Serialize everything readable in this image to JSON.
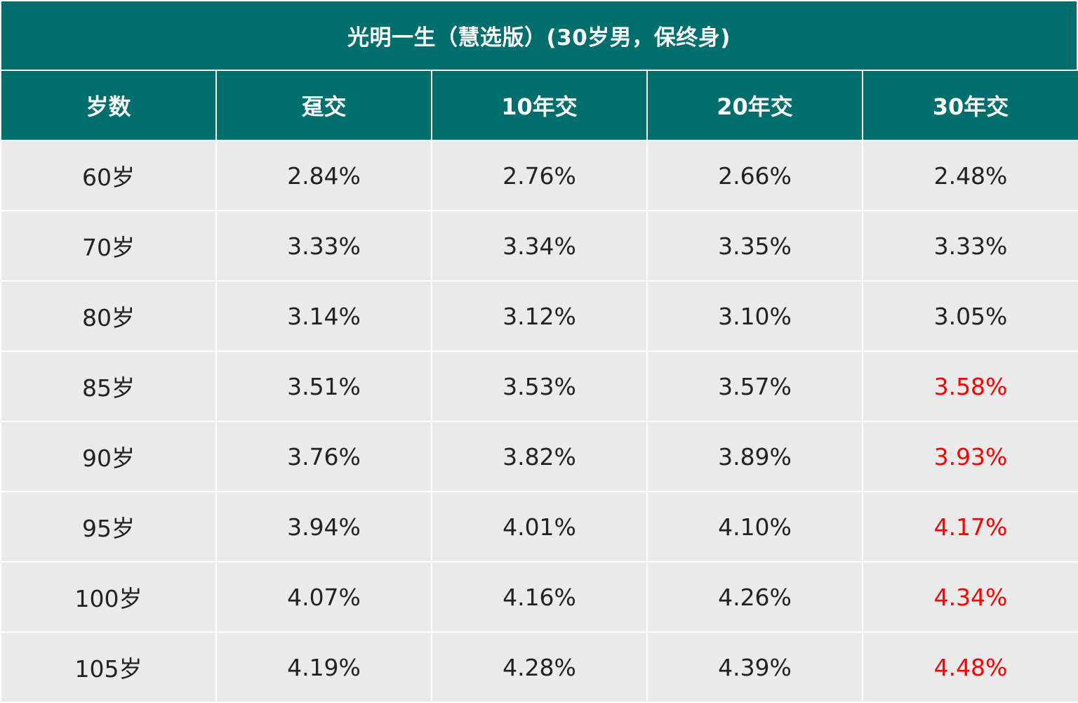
{
  "table": {
    "title": "光明一生（慧选版）(30岁男，保终身)",
    "headers": [
      "岁数",
      "趸交",
      "10年交",
      "20年交",
      "30年交"
    ],
    "highlight_color": "#ff0000",
    "header_color": "#006e6c",
    "rows": [
      {
        "age": "60岁",
        "values": [
          "2.84%",
          "2.76%",
          "2.66%",
          "2.48%"
        ],
        "highlight_last": false
      },
      {
        "age": "70岁",
        "values": [
          "3.33%",
          "3.34%",
          "3.35%",
          "3.33%"
        ],
        "highlight_last": false
      },
      {
        "age": "80岁",
        "values": [
          "3.14%",
          "3.12%",
          "3.10%",
          "3.05%"
        ],
        "highlight_last": false
      },
      {
        "age": "85岁",
        "values": [
          "3.51%",
          "3.53%",
          "3.57%",
          "3.58%"
        ],
        "highlight_last": true
      },
      {
        "age": "90岁",
        "values": [
          "3.76%",
          "3.82%",
          "3.89%",
          "3.93%"
        ],
        "highlight_last": true
      },
      {
        "age": "95岁",
        "values": [
          "3.94%",
          "4.01%",
          "4.10%",
          "4.17%"
        ],
        "highlight_last": true
      },
      {
        "age": "100岁",
        "values": [
          "4.07%",
          "4.16%",
          "4.26%",
          "4.34%"
        ],
        "highlight_last": true
      },
      {
        "age": "105岁",
        "values": [
          "4.19%",
          "4.28%",
          "4.39%",
          "4.48%"
        ],
        "highlight_last": true
      }
    ]
  }
}
